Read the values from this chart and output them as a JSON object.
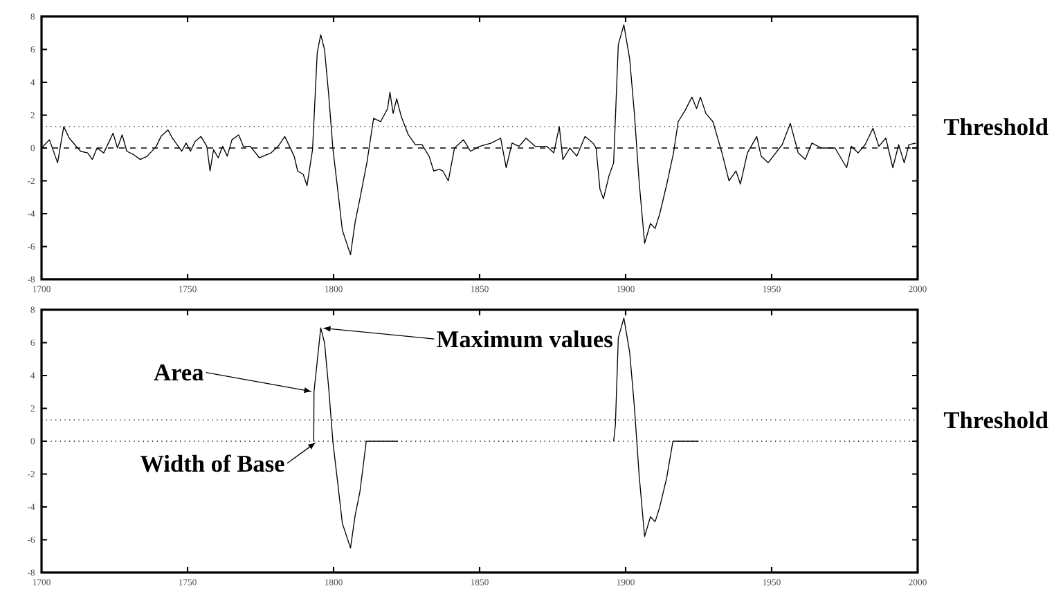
{
  "chart_data": [
    {
      "type": "line",
      "xlim": [
        1700,
        2000
      ],
      "xticks": [
        1700,
        1750,
        1800,
        1850,
        1900,
        1950,
        2000
      ],
      "ylim": [
        -8,
        8
      ],
      "yticks": [
        -8,
        -6,
        -4,
        -2,
        0,
        2,
        4,
        6,
        8
      ],
      "grid": false,
      "line_style": "solid",
      "series": [
        {
          "color": "#000000",
          "x": [
            1700,
            1702.7,
            1705.5,
            1707.6,
            1709.5,
            1711.4,
            1713.4,
            1715.8,
            1717.4,
            1719,
            1721.3,
            1722.9,
            1724.5,
            1726,
            1727.6,
            1729.2,
            1731.5,
            1733.8,
            1736.2,
            1739.3,
            1740.9,
            1743.3,
            1744.8,
            1748,
            1749.5,
            1751,
            1752.6,
            1754.6,
            1756.6,
            1757.7,
            1758.9,
            1760.5,
            1762,
            1763.6,
            1765.2,
            1767.5,
            1769.1,
            1771.5,
            1774.6,
            1778.6,
            1781,
            1783.3,
            1784.9,
            1786.5,
            1787.7,
            1789.6,
            1790.9,
            1792.8,
            1794.4,
            1795.6,
            1796.9,
            1798.3,
            1799.8,
            1801.4,
            1803,
            1805.8,
            1807.4,
            1809,
            1811.4,
            1813.7,
            1816.1,
            1818.5,
            1819.3,
            1820.4,
            1821.6,
            1823.2,
            1825.6,
            1828,
            1830.3,
            1832.7,
            1834.3,
            1836.2,
            1837.4,
            1839.3,
            1841.4,
            1844.5,
            1846.9,
            1850,
            1854,
            1857.2,
            1859.1,
            1861.1,
            1863.5,
            1865.9,
            1869,
            1873,
            1875.4,
            1877.3,
            1878.5,
            1880.9,
            1883.3,
            1886.1,
            1888.8,
            1889.9,
            1891.2,
            1892.4,
            1894.3,
            1895.9,
            1897.5,
            1899.4,
            1901.4,
            1903,
            1904.6,
            1906.5,
            1908.5,
            1910.1,
            1911.7,
            1914.1,
            1916.4,
            1918,
            1920.4,
            1922.7,
            1924.3,
            1925.6,
            1927.5,
            1929.9,
            1933,
            1935.4,
            1937.8,
            1939.3,
            1941.7,
            1944.9,
            1946.4,
            1948.8,
            1953.6,
            1956.4,
            1959.1,
            1961.5,
            1963.8,
            1967,
            1971.7,
            1975.7,
            1977.3,
            1979.6,
            1982,
            1984.7,
            1986.7,
            1989.1,
            1991.5,
            1993.5,
            1995.4,
            1997,
            1999.4
          ],
          "values": [
            0,
            0.5,
            -0.9,
            1.3,
            0.6,
            0.2,
            -0.2,
            -0.3,
            -0.7,
            0,
            -0.3,
            0.3,
            0.9,
            0,
            0.8,
            -0.2,
            -0.4,
            -0.7,
            -0.5,
            0.1,
            0.7,
            1.1,
            0.6,
            -0.2,
            0.3,
            -0.2,
            0.4,
            0.7,
            0.1,
            -1.4,
            -0.1,
            -0.6,
            0.1,
            -0.5,
            0.5,
            0.8,
            0.1,
            0.1,
            -0.6,
            -0.3,
            0.1,
            0.7,
            0.1,
            -0.5,
            -1.4,
            -1.6,
            -2.3,
            -0.1,
            5.8,
            6.9,
            6,
            3.3,
            -0.1,
            -2.5,
            -5,
            -6.5,
            -4.5,
            -3.1,
            -0.9,
            1.8,
            1.6,
            2.4,
            3.4,
            2.1,
            3,
            1.9,
            0.8,
            0.2,
            0.2,
            -0.5,
            -1.4,
            -1.3,
            -1.4,
            -2,
            0,
            0.5,
            -0.2,
            0.1,
            0.3,
            0.6,
            -1.2,
            0.3,
            0.1,
            0.6,
            0.1,
            0.1,
            -0.3,
            1.3,
            -0.7,
            0,
            -0.5,
            0.7,
            0.3,
            0,
            -2.5,
            -3.1,
            -1.7,
            -0.9,
            6.3,
            7.5,
            5.4,
            2.1,
            -2,
            -5.8,
            -4.6,
            -4.9,
            -4,
            -2.2,
            -0.3,
            1.6,
            2.3,
            3.1,
            2.4,
            3.1,
            2.1,
            1.6,
            -0.3,
            -2,
            -1.4,
            -2.2,
            -0.3,
            0.7,
            -0.5,
            -0.9,
            0.2,
            1.5,
            -0.3,
            -0.7,
            0.3,
            0,
            0,
            -1.2,
            0.1,
            -0.3,
            0.2,
            1.2,
            0.1,
            0.6,
            -1.2,
            0.2,
            -0.9,
            0.2,
            0.3
          ]
        }
      ],
      "ref_lines": [
        {
          "axis": "y",
          "value": 1.3,
          "label": "Threshold",
          "line_style": "dotted"
        },
        {
          "axis": "y",
          "value": 0,
          "line_style": "dashed"
        }
      ]
    },
    {
      "type": "line",
      "xlim": [
        1700,
        2000
      ],
      "xticks": [
        1700,
        1750,
        1800,
        1850,
        1900,
        1950,
        2000
      ],
      "ylim": [
        -8,
        8
      ],
      "yticks": [
        -8,
        -6,
        -4,
        -2,
        0,
        2,
        4,
        6,
        8
      ],
      "grid": false,
      "line_style": "solid",
      "series": [
        {
          "color": "#000000",
          "x": [
            1793.2,
            1793.3,
            1795.6,
            1796.9,
            1798.3,
            1799.8,
            1801.4,
            1803,
            1805.8,
            1807.4,
            1809,
            1811.2,
            1822,
            1860,
            1895.9,
            1896.5,
            1897.5,
            1899.4,
            1901.4,
            1903,
            1904.6,
            1906.5,
            1908.5,
            1910.1,
            1911.7,
            1914.1,
            1916.2,
            1925
          ],
          "values": [
            0,
            3,
            6.9,
            6,
            3.3,
            -0.1,
            -2.5,
            -5,
            -6.5,
            -4.5,
            -3.1,
            0,
            0,
            null,
            0,
            1,
            6.3,
            7.5,
            5.4,
            2.1,
            -2,
            -5.8,
            -4.6,
            -4.9,
            -4,
            -2.2,
            0,
            0
          ]
        }
      ],
      "ref_lines": [
        {
          "axis": "y",
          "value": 1.3,
          "label": "Threshold",
          "line_style": "dotted"
        },
        {
          "axis": "y",
          "value": 0,
          "line_style": "dotted"
        }
      ],
      "annotations": [
        {
          "text": "Maximum values",
          "x": 1795.6,
          "y": 6.9
        },
        {
          "text": "Area",
          "x": 1793.3,
          "y": 3
        },
        {
          "text": "Width of Base",
          "x": 1794.5,
          "y": 0
        }
      ]
    }
  ]
}
